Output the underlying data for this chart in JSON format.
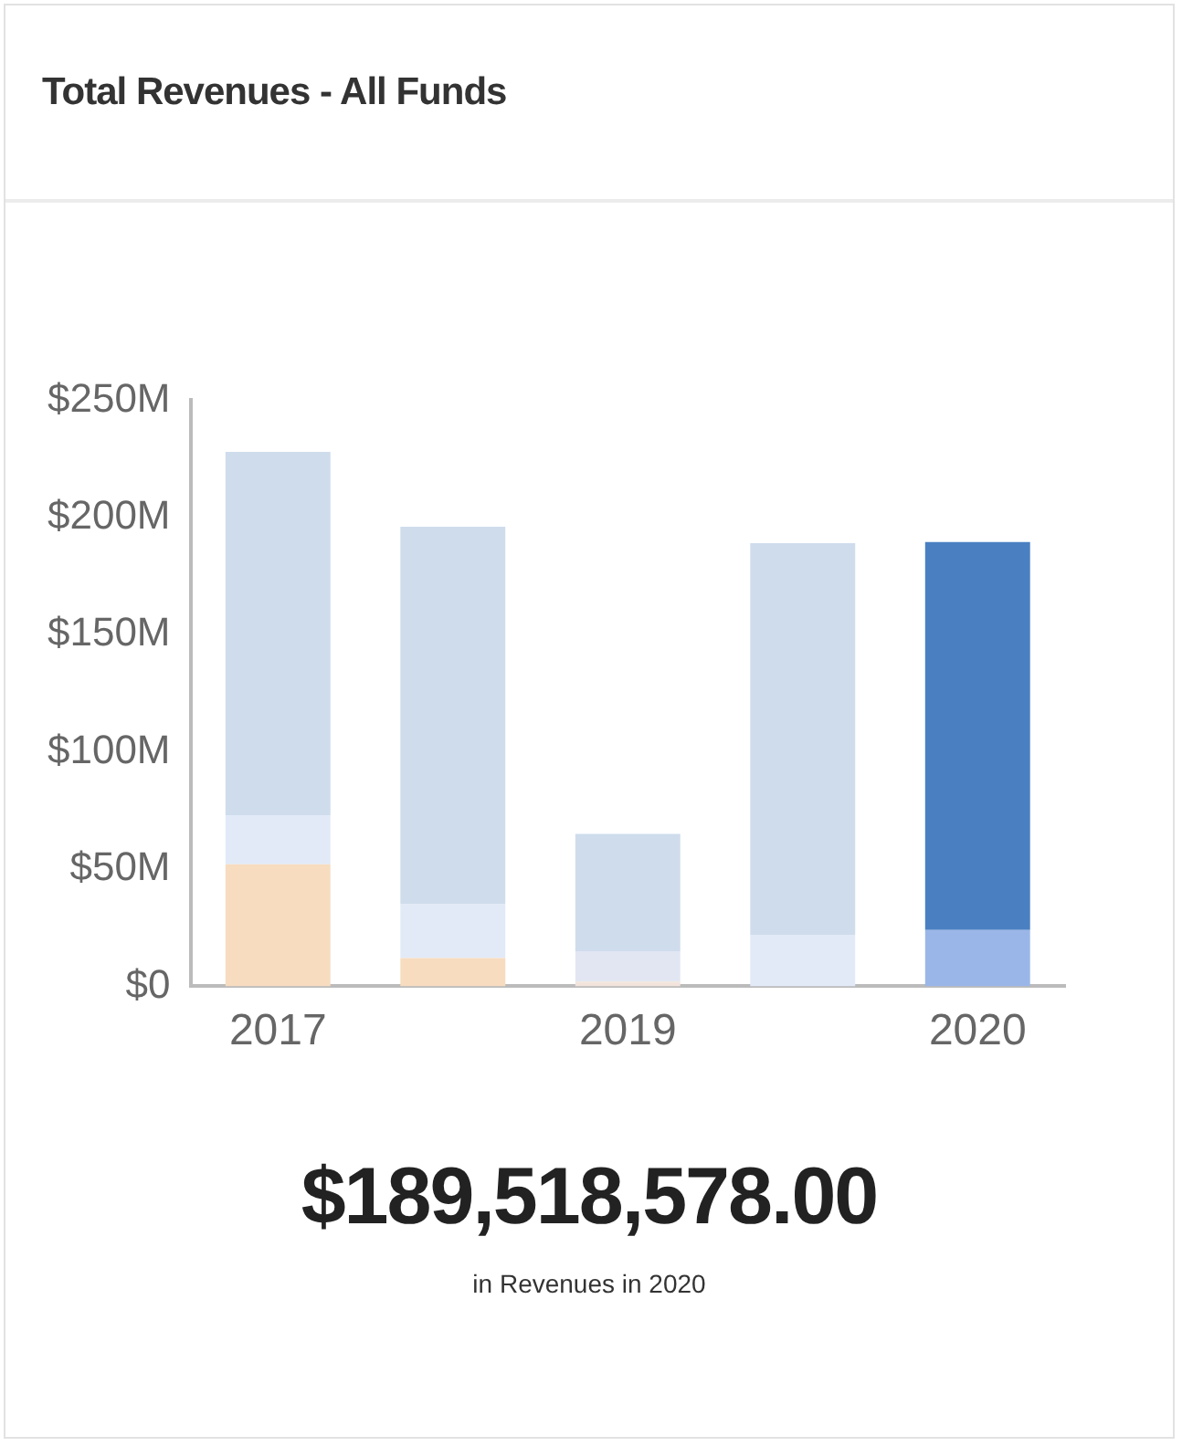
{
  "chart_data": {
    "type": "bar",
    "title": "Total Revenues - All Funds",
    "stacked": true,
    "categories": [
      "2017",
      null,
      "2019",
      null,
      "2020"
    ],
    "series": [
      {
        "colors": [
          "#f7dcc0",
          "#f7dcc0",
          "#f2e4dc",
          "#f7dcc0",
          "#f7dcc0"
        ],
        "values": [
          52,
          12,
          2,
          0,
          0
        ]
      },
      {
        "colors": [
          "#e2eaf8",
          "#e2eaf8",
          "#e2e6f2",
          "#e2eaf8",
          "#9ab6e8"
        ],
        "values": [
          21,
          23,
          13,
          22,
          24
        ]
      },
      {
        "colors": [
          "#cfdcec",
          "#cfdcec",
          "#cfdcec",
          "#cfdcec",
          "#4a80c2"
        ],
        "values": [
          155,
          161,
          50,
          167,
          165.5
        ]
      }
    ],
    "ylim": [
      0,
      250
    ],
    "yticks": [
      {
        "value": 0,
        "label": "$0"
      },
      {
        "value": 50,
        "label": "$50M"
      },
      {
        "value": 100,
        "label": "$100M"
      },
      {
        "value": 150,
        "label": "$150M"
      },
      {
        "value": 200,
        "label": "$200M"
      },
      {
        "value": 250,
        "label": "$250M"
      }
    ],
    "grid": false,
    "annotations": [
      "$189,518,578.00",
      "in Revenues in 2020"
    ]
  }
}
